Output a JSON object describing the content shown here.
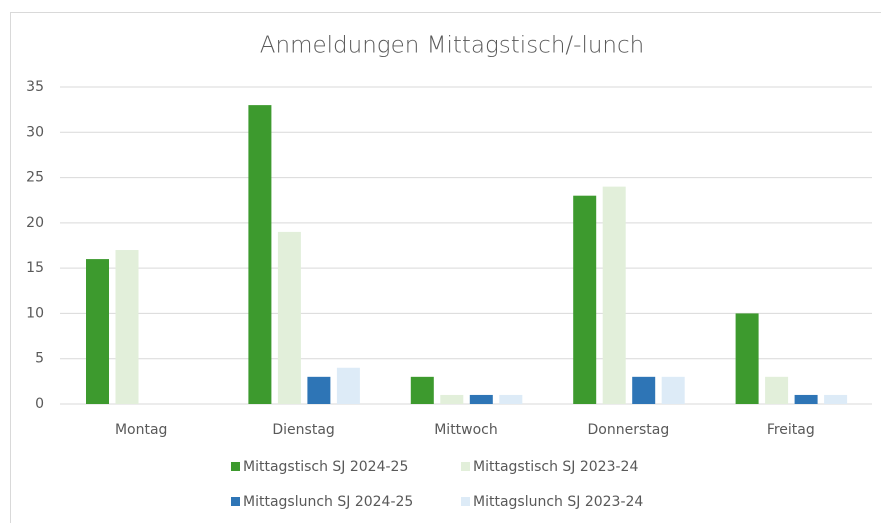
{
  "chart_data": {
    "type": "bar",
    "title": "Anmeldungen Mittagstisch/-lunch",
    "categories": [
      "Montag",
      "Dienstag",
      "Mittwoch",
      "Donnerstag",
      "Freitag"
    ],
    "series": [
      {
        "name": "Mittagstisch SJ 2024-25",
        "color": "#3d9a2e",
        "values": [
          16,
          33,
          3,
          23,
          10
        ]
      },
      {
        "name": "Mittagstisch SJ 2023-24",
        "color": "#e2efda",
        "values": [
          17,
          19,
          1,
          24,
          3
        ]
      },
      {
        "name": "Mittagslunch SJ 2024-25",
        "color": "#2e75b6",
        "values": [
          0,
          3,
          1,
          3,
          1
        ]
      },
      {
        "name": "Mittagslunch SJ 2023-24",
        "color": "#ddebf7",
        "values": [
          0,
          4,
          1,
          3,
          1
        ]
      }
    ],
    "ylim": [
      0,
      35
    ],
    "yticks": [
      0,
      5,
      10,
      15,
      20,
      25,
      30,
      35
    ],
    "grid": true,
    "legend": "bottom"
  }
}
